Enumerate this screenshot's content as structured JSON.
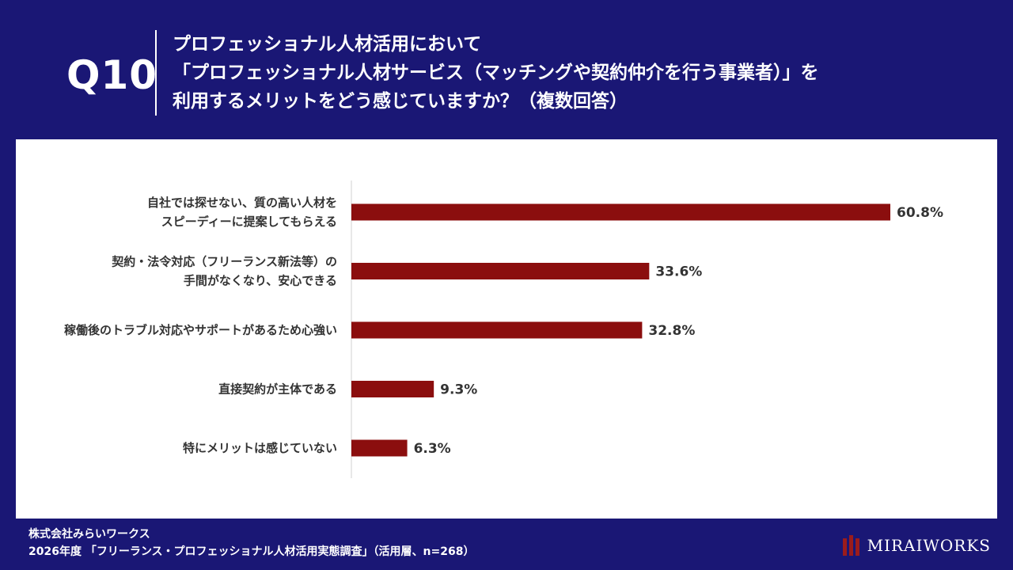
{
  "header": {
    "question_number": "Q10",
    "title_lines": [
      "プロフェッショナル人材活用において",
      "「プロフェッショナル人材サービス（マッチングや契約仲介を行う事業者）」を",
      "利用するメリットをどう感じていますか？（複数回答）"
    ]
  },
  "chart_data": {
    "type": "bar",
    "orientation": "horizontal",
    "categories": [
      [
        "自社では探せない、質の高い人材を",
        "スピーディーに提案してもらえる"
      ],
      [
        "契約・法令対応（フリーランス新法等）の",
        "手間がなくなり、安心できる"
      ],
      [
        "稼働後のトラブル対応やサポートがあるため心強い"
      ],
      [
        "直接契約が主体である"
      ],
      [
        "特にメリットは感じていない"
      ]
    ],
    "values": [
      60.8,
      33.6,
      32.8,
      9.3,
      6.3
    ],
    "value_labels": [
      "60.8%",
      "33.6%",
      "32.8%",
      "9.3%",
      "6.3%"
    ],
    "xlim": [
      0,
      60.8
    ],
    "bar_color": "#8b0e0e",
    "grid": false,
    "legend": "none"
  },
  "footer": {
    "company": "株式会社みらいワークス",
    "source": "2026年度 「フリーランス・プロフェッショナル人材活用実態調査」（活用層、n=268）"
  },
  "logo": {
    "text": "MIRAIWORKS"
  },
  "colors": {
    "background": "#1a1775",
    "bar": "#8b0e0e"
  }
}
